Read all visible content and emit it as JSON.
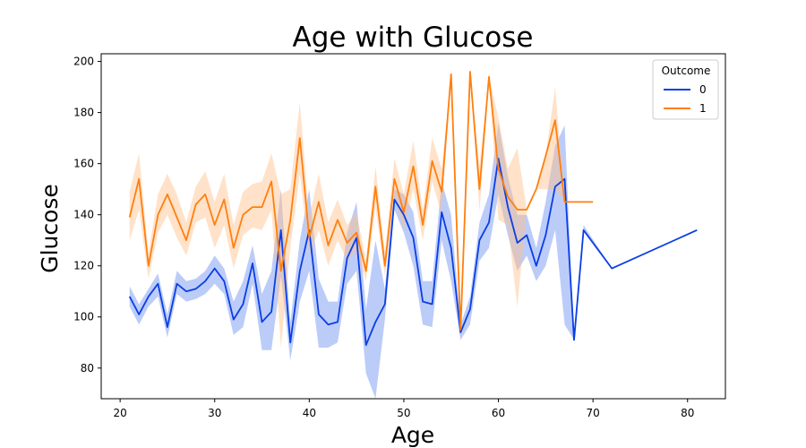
{
  "chart_data": {
    "type": "line",
    "title": "Age with Glucose",
    "xlabel": "Age",
    "ylabel": "Glucose",
    "xlim": [
      18,
      84
    ],
    "ylim": [
      68,
      203
    ],
    "xticks": [
      20,
      30,
      40,
      50,
      60,
      70,
      80
    ],
    "yticks": [
      80,
      100,
      120,
      140,
      160,
      180,
      200
    ],
    "grid": false,
    "legend": {
      "title": "Outcome",
      "placement": "top-right"
    },
    "series": [
      {
        "name": "0",
        "color": "#0a3ee6",
        "band_color": "#6a8ff0",
        "x": [
          21,
          22,
          23,
          24,
          25,
          26,
          27,
          28,
          29,
          30,
          31,
          32,
          33,
          34,
          35,
          36,
          37,
          38,
          39,
          40,
          41,
          42,
          43,
          44,
          45,
          46,
          47,
          48,
          49,
          50,
          51,
          52,
          53,
          54,
          55,
          56,
          57,
          58,
          59,
          60,
          61,
          62,
          63,
          64,
          65,
          66,
          67,
          68,
          69,
          72,
          81
        ],
        "y": [
          108,
          101,
          108,
          113,
          96,
          113,
          110,
          111,
          114,
          119,
          114,
          99,
          105,
          121,
          98,
          102,
          134,
          90,
          118,
          134,
          101,
          97,
          98,
          123,
          131,
          89,
          98,
          105,
          146,
          140,
          131,
          106,
          105,
          141,
          127,
          94,
          103,
          130,
          137,
          162,
          143,
          129,
          132,
          120,
          132,
          151,
          154,
          91,
          134,
          119,
          134
        ],
        "lower": [
          104,
          97,
          104,
          108,
          92,
          109,
          106,
          107,
          109,
          113,
          109,
          93,
          96,
          113,
          87,
          87,
          116,
          83,
          106,
          118,
          88,
          88,
          90,
          113,
          118,
          78,
          68,
          99,
          142,
          133,
          120,
          97,
          96,
          130,
          114,
          91,
          97,
          122,
          127,
          148,
          132,
          118,
          124,
          114,
          120,
          134,
          97,
          91,
          134,
          119,
          134
        ],
        "upper": [
          112,
          105,
          111,
          117,
          101,
          118,
          114,
          115,
          118,
          124,
          119,
          106,
          114,
          128,
          109,
          118,
          150,
          98,
          130,
          150,
          115,
          106,
          106,
          133,
          145,
          103,
          130,
          111,
          150,
          148,
          141,
          114,
          114,
          153,
          140,
          97,
          108,
          137,
          148,
          176,
          155,
          140,
          140,
          127,
          145,
          167,
          175,
          91,
          136,
          119,
          134
        ]
      },
      {
        "name": "1",
        "color": "#ff7f0e",
        "band_color": "#ffbf87",
        "x": [
          21,
          22,
          23,
          24,
          25,
          26,
          27,
          28,
          29,
          30,
          31,
          32,
          33,
          34,
          35,
          36,
          37,
          38,
          39,
          40,
          41,
          42,
          43,
          44,
          45,
          46,
          47,
          48,
          49,
          50,
          51,
          52,
          53,
          54,
          55,
          56,
          57,
          58,
          59,
          60,
          61,
          62,
          63,
          64,
          65,
          66,
          67,
          68,
          69,
          70
        ],
        "y": [
          139,
          154,
          120,
          140,
          148,
          139,
          130,
          144,
          148,
          136,
          146,
          127,
          140,
          143,
          143,
          153,
          118,
          138,
          170,
          131,
          145,
          128,
          138,
          129,
          133,
          118,
          151,
          120,
          154,
          141,
          159,
          136,
          161,
          149,
          195,
          95,
          196,
          150,
          194,
          158,
          147,
          142,
          142,
          150,
          163,
          177,
          145,
          145,
          145,
          145
        ],
        "lower": [
          130,
          142,
          115,
          133,
          140,
          131,
          124,
          137,
          139,
          127,
          136,
          119,
          132,
          135,
          134,
          142,
          88,
          127,
          156,
          124,
          134,
          120,
          130,
          122,
          126,
          114,
          143,
          116,
          147,
          134,
          150,
          130,
          153,
          140,
          195,
          90,
          196,
          141,
          194,
          138,
          136,
          104,
          142,
          150,
          150,
          150,
          145,
          145,
          145,
          145
        ],
        "upper": [
          149,
          164,
          125,
          148,
          156,
          148,
          137,
          151,
          157,
          145,
          156,
          136,
          149,
          152,
          153,
          164,
          148,
          150,
          184,
          139,
          156,
          137,
          146,
          136,
          141,
          122,
          159,
          125,
          162,
          148,
          169,
          142,
          170,
          158,
          195,
          100,
          196,
          159,
          194,
          178,
          158,
          166,
          142,
          150,
          163,
          190,
          145,
          145,
          145,
          145
        ]
      }
    ]
  }
}
